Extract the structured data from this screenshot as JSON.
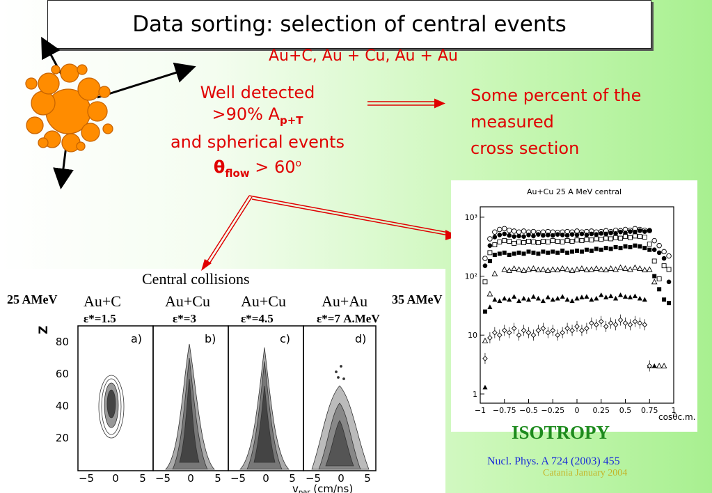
{
  "title": "Data sorting: selection of central events",
  "subtitle": "Au+C,  Au + Cu, Au + Au",
  "criteria": {
    "line1": "Well detected",
    "line2_prefix": ">90% A",
    "line2_sub": "p+T",
    "line3": "and spherical events",
    "theta_symbol": "θ",
    "theta_sub": "flow",
    "theta_rest": " > 60",
    "theta_sup": "o"
  },
  "result": {
    "line1": "Some percent of the",
    "line2": "measured",
    "line3": "cross section"
  },
  "left_figure": {
    "heading": "Central collisions",
    "energy_left": "25 AMeV",
    "energy_right": "35 AMeV",
    "panels": [
      {
        "system": "Au+C",
        "eps": "ε*=1.5",
        "tag": "a)"
      },
      {
        "system": "Au+Cu",
        "eps": "ε*=3",
        "tag": "b)"
      },
      {
        "system": "Au+Cu",
        "eps": "ε*=4.5",
        "tag": "c)"
      },
      {
        "system": "Au+Au",
        "eps": "ε*=7 A.MeV",
        "tag": "d)"
      }
    ],
    "ylabel": "Z",
    "yticks": [
      "80",
      "60",
      "40",
      "20"
    ],
    "xticks": [
      "−5",
      "0",
      "5"
    ],
    "xlabel_main": "v",
    "xlabel_sub": "par",
    "xlabel_unit": " (cm/ns)"
  },
  "chart_data": {
    "type": "scatter",
    "title": "Au+Cu 25 A MeV central",
    "xlabel": "cosθc.m.",
    "ylabel": "",
    "xlim": [
      -1,
      1
    ],
    "ylim": [
      1,
      1000
    ],
    "yscale": "log",
    "xticks": [
      "−1",
      "−0.75",
      "−0.5",
      "−0.25",
      "0",
      "0.25",
      "0.5",
      "0.75",
      "1"
    ],
    "yticks": [
      {
        "v": 1000,
        "t": "10³"
      },
      {
        "v": 100,
        "t": "10²"
      },
      {
        "v": 10,
        "t": "10"
      },
      {
        "v": 1,
        "t": "1"
      }
    ],
    "series": [
      {
        "marker": "open-circle",
        "x": [
          -0.95,
          -0.9,
          -0.85,
          -0.8,
          -0.75,
          -0.7,
          -0.65,
          -0.6,
          -0.55,
          -0.5,
          -0.45,
          -0.4,
          -0.35,
          -0.3,
          -0.25,
          -0.2,
          -0.15,
          -0.1,
          -0.05,
          0,
          0.05,
          0.1,
          0.15,
          0.2,
          0.25,
          0.3,
          0.35,
          0.4,
          0.45,
          0.5,
          0.55,
          0.6,
          0.65,
          0.7,
          0.75,
          0.8,
          0.85,
          0.9,
          0.95
        ],
        "y": [
          200,
          430,
          560,
          620,
          640,
          600,
          580,
          560,
          580,
          560,
          570,
          550,
          560,
          570,
          560,
          550,
          560,
          570,
          560,
          580,
          560,
          570,
          580,
          560,
          570,
          590,
          570,
          600,
          590,
          620,
          600,
          640,
          620,
          600,
          590,
          400,
          330,
          260,
          220
        ]
      },
      {
        "marker": "filled-circle",
        "x": [
          -0.95,
          -0.9,
          -0.85,
          -0.8,
          -0.75,
          -0.7,
          -0.65,
          -0.6,
          -0.55,
          -0.5,
          -0.45,
          -0.4,
          -0.35,
          -0.3,
          -0.25,
          -0.2,
          -0.15,
          -0.1,
          -0.05,
          0,
          0.05,
          0.1,
          0.15,
          0.2,
          0.25,
          0.3,
          0.35,
          0.4,
          0.45,
          0.5,
          0.55,
          0.6,
          0.65,
          0.7,
          0.75,
          0.8,
          0.85,
          0.9,
          0.95
        ],
        "y": [
          150,
          330,
          460,
          500,
          520,
          490,
          470,
          480,
          470,
          500,
          480,
          510,
          490,
          500,
          490,
          510,
          500,
          490,
          510,
          500,
          520,
          500,
          520,
          510,
          530,
          520,
          540,
          530,
          560,
          540,
          570,
          560,
          590,
          570,
          600,
          280,
          250,
          200,
          80
        ]
      },
      {
        "marker": "open-square",
        "x": [
          -0.95,
          -0.9,
          -0.85,
          -0.8,
          -0.75,
          -0.7,
          -0.65,
          -0.6,
          -0.55,
          -0.5,
          -0.45,
          -0.4,
          -0.35,
          -0.3,
          -0.25,
          -0.2,
          -0.15,
          -0.1,
          -0.05,
          0,
          0.05,
          0.1,
          0.15,
          0.2,
          0.25,
          0.3,
          0.35,
          0.4,
          0.45,
          0.5,
          0.55,
          0.6,
          0.65,
          0.7,
          0.75,
          0.8,
          0.85,
          0.9,
          0.95
        ],
        "y": [
          80,
          250,
          340,
          380,
          400,
          390,
          360,
          380,
          370,
          390,
          380,
          370,
          390,
          380,
          400,
          390,
          380,
          400,
          390,
          410,
          400,
          420,
          410,
          430,
          420,
          440,
          430,
          450,
          440,
          470,
          450,
          480,
          470,
          460,
          350,
          180,
          90,
          150,
          130
        ]
      },
      {
        "marker": "filled-square",
        "x": [
          -0.95,
          -0.9,
          -0.85,
          -0.8,
          -0.75,
          -0.7,
          -0.65,
          -0.6,
          -0.55,
          -0.5,
          -0.45,
          -0.4,
          -0.35,
          -0.3,
          -0.25,
          -0.2,
          -0.15,
          -0.1,
          -0.05,
          0,
          0.05,
          0.1,
          0.15,
          0.2,
          0.25,
          0.3,
          0.35,
          0.4,
          0.45,
          0.5,
          0.55,
          0.6,
          0.65,
          0.7,
          0.75,
          0.8,
          0.85,
          0.9,
          0.95
        ],
        "y": [
          25,
          180,
          230,
          240,
          250,
          230,
          240,
          250,
          240,
          260,
          250,
          240,
          260,
          250,
          260,
          250,
          270,
          250,
          260,
          270,
          260,
          280,
          270,
          290,
          280,
          300,
          290,
          310,
          300,
          320,
          310,
          330,
          320,
          300,
          280,
          100,
          60,
          40,
          35
        ]
      },
      {
        "marker": "open-triangle",
        "x": [
          -0.95,
          -0.9,
          -0.85,
          -0.75,
          -0.7,
          -0.65,
          -0.6,
          -0.55,
          -0.5,
          -0.45,
          -0.4,
          -0.35,
          -0.3,
          -0.25,
          -0.2,
          -0.15,
          -0.1,
          -0.05,
          0,
          0.05,
          0.1,
          0.15,
          0.2,
          0.25,
          0.3,
          0.35,
          0.4,
          0.45,
          0.5,
          0.55,
          0.6,
          0.65,
          0.7,
          0.75,
          0.8,
          0.85,
          0.9
        ],
        "y": [
          8,
          50,
          110,
          130,
          125,
          135,
          130,
          125,
          130,
          135,
          128,
          130,
          125,
          130,
          128,
          135,
          130,
          125,
          130,
          135,
          128,
          130,
          135,
          130,
          128,
          135,
          130,
          140,
          135,
          130,
          140,
          135,
          128,
          130,
          80,
          3,
          3
        ]
      },
      {
        "marker": "filled-triangle",
        "x": [
          -0.95,
          -0.9,
          -0.85,
          -0.8,
          -0.75,
          -0.7,
          -0.65,
          -0.6,
          -0.55,
          -0.5,
          -0.45,
          -0.4,
          -0.35,
          -0.3,
          -0.25,
          -0.2,
          -0.15,
          -0.1,
          -0.05,
          0,
          0.05,
          0.1,
          0.15,
          0.2,
          0.25,
          0.3,
          0.35,
          0.4,
          0.45,
          0.5,
          0.55,
          0.6,
          0.65,
          0.7,
          0.75,
          0.8
        ],
        "y": [
          1.3,
          30,
          40,
          38,
          42,
          40,
          45,
          38,
          42,
          40,
          45,
          42,
          38,
          44,
          40,
          42,
          45,
          40,
          38,
          42,
          44,
          45,
          40,
          42,
          48,
          44,
          46,
          42,
          48,
          45,
          44,
          46,
          42,
          40,
          3,
          3
        ]
      },
      {
        "marker": "open-diamond",
        "x": [
          -0.95,
          -0.9,
          -0.85,
          -0.8,
          -0.75,
          -0.7,
          -0.65,
          -0.6,
          -0.55,
          -0.5,
          -0.45,
          -0.4,
          -0.35,
          -0.3,
          -0.25,
          -0.2,
          -0.15,
          -0.1,
          -0.05,
          0,
          0.05,
          0.1,
          0.15,
          0.2,
          0.25,
          0.3,
          0.35,
          0.4,
          0.45,
          0.5,
          0.55,
          0.6,
          0.65,
          0.7,
          0.75
        ],
        "y": [
          4,
          9,
          11,
          10,
          12,
          11,
          13,
          10,
          12,
          11,
          10,
          12,
          13,
          11,
          12,
          10,
          11,
          13,
          12,
          14,
          12,
          13,
          16,
          15,
          17,
          14,
          16,
          15,
          18,
          16,
          15,
          17,
          16,
          15,
          3
        ]
      }
    ]
  },
  "isotropy": "ISOTROPY",
  "reference": "Nucl. Phys. A 724 (2003) 455",
  "footer": "Catania    January 2004",
  "colors": {
    "red": "#e00000",
    "green": "#1d8a1d",
    "blue": "#1a2cd8",
    "nucleon": "#ff8c00"
  }
}
